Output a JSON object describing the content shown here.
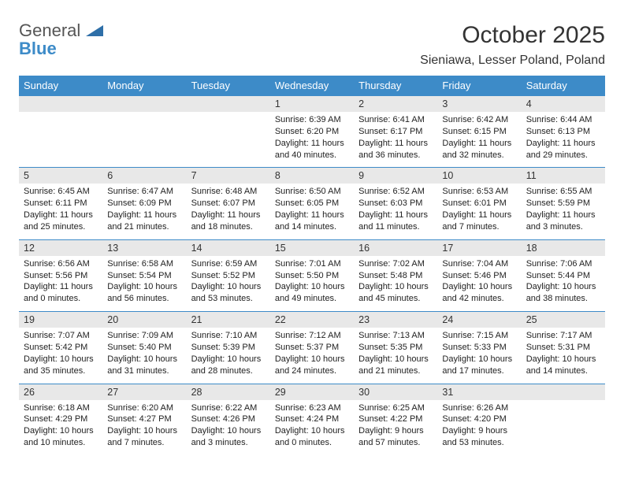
{
  "logo": {
    "text1": "General",
    "text2": "Blue",
    "triangle_color": "#2e6fa8"
  },
  "header": {
    "title": "October 2025",
    "location": "Sieniawa, Lesser Poland, Poland"
  },
  "colors": {
    "header_bg": "#3d8bc8",
    "daynum_bg": "#e8e8e8",
    "border": "#3d8bc8"
  },
  "day_names": [
    "Sunday",
    "Monday",
    "Tuesday",
    "Wednesday",
    "Thursday",
    "Friday",
    "Saturday"
  ],
  "weeks": [
    [
      null,
      null,
      null,
      {
        "n": "1",
        "sr": "Sunrise: 6:39 AM",
        "ss": "Sunset: 6:20 PM",
        "d1": "Daylight: 11 hours",
        "d2": "and 40 minutes."
      },
      {
        "n": "2",
        "sr": "Sunrise: 6:41 AM",
        "ss": "Sunset: 6:17 PM",
        "d1": "Daylight: 11 hours",
        "d2": "and 36 minutes."
      },
      {
        "n": "3",
        "sr": "Sunrise: 6:42 AM",
        "ss": "Sunset: 6:15 PM",
        "d1": "Daylight: 11 hours",
        "d2": "and 32 minutes."
      },
      {
        "n": "4",
        "sr": "Sunrise: 6:44 AM",
        "ss": "Sunset: 6:13 PM",
        "d1": "Daylight: 11 hours",
        "d2": "and 29 minutes."
      }
    ],
    [
      {
        "n": "5",
        "sr": "Sunrise: 6:45 AM",
        "ss": "Sunset: 6:11 PM",
        "d1": "Daylight: 11 hours",
        "d2": "and 25 minutes."
      },
      {
        "n": "6",
        "sr": "Sunrise: 6:47 AM",
        "ss": "Sunset: 6:09 PM",
        "d1": "Daylight: 11 hours",
        "d2": "and 21 minutes."
      },
      {
        "n": "7",
        "sr": "Sunrise: 6:48 AM",
        "ss": "Sunset: 6:07 PM",
        "d1": "Daylight: 11 hours",
        "d2": "and 18 minutes."
      },
      {
        "n": "8",
        "sr": "Sunrise: 6:50 AM",
        "ss": "Sunset: 6:05 PM",
        "d1": "Daylight: 11 hours",
        "d2": "and 14 minutes."
      },
      {
        "n": "9",
        "sr": "Sunrise: 6:52 AM",
        "ss": "Sunset: 6:03 PM",
        "d1": "Daylight: 11 hours",
        "d2": "and 11 minutes."
      },
      {
        "n": "10",
        "sr": "Sunrise: 6:53 AM",
        "ss": "Sunset: 6:01 PM",
        "d1": "Daylight: 11 hours",
        "d2": "and 7 minutes."
      },
      {
        "n": "11",
        "sr": "Sunrise: 6:55 AM",
        "ss": "Sunset: 5:59 PM",
        "d1": "Daylight: 11 hours",
        "d2": "and 3 minutes."
      }
    ],
    [
      {
        "n": "12",
        "sr": "Sunrise: 6:56 AM",
        "ss": "Sunset: 5:56 PM",
        "d1": "Daylight: 11 hours",
        "d2": "and 0 minutes."
      },
      {
        "n": "13",
        "sr": "Sunrise: 6:58 AM",
        "ss": "Sunset: 5:54 PM",
        "d1": "Daylight: 10 hours",
        "d2": "and 56 minutes."
      },
      {
        "n": "14",
        "sr": "Sunrise: 6:59 AM",
        "ss": "Sunset: 5:52 PM",
        "d1": "Daylight: 10 hours",
        "d2": "and 53 minutes."
      },
      {
        "n": "15",
        "sr": "Sunrise: 7:01 AM",
        "ss": "Sunset: 5:50 PM",
        "d1": "Daylight: 10 hours",
        "d2": "and 49 minutes."
      },
      {
        "n": "16",
        "sr": "Sunrise: 7:02 AM",
        "ss": "Sunset: 5:48 PM",
        "d1": "Daylight: 10 hours",
        "d2": "and 45 minutes."
      },
      {
        "n": "17",
        "sr": "Sunrise: 7:04 AM",
        "ss": "Sunset: 5:46 PM",
        "d1": "Daylight: 10 hours",
        "d2": "and 42 minutes."
      },
      {
        "n": "18",
        "sr": "Sunrise: 7:06 AM",
        "ss": "Sunset: 5:44 PM",
        "d1": "Daylight: 10 hours",
        "d2": "and 38 minutes."
      }
    ],
    [
      {
        "n": "19",
        "sr": "Sunrise: 7:07 AM",
        "ss": "Sunset: 5:42 PM",
        "d1": "Daylight: 10 hours",
        "d2": "and 35 minutes."
      },
      {
        "n": "20",
        "sr": "Sunrise: 7:09 AM",
        "ss": "Sunset: 5:40 PM",
        "d1": "Daylight: 10 hours",
        "d2": "and 31 minutes."
      },
      {
        "n": "21",
        "sr": "Sunrise: 7:10 AM",
        "ss": "Sunset: 5:39 PM",
        "d1": "Daylight: 10 hours",
        "d2": "and 28 minutes."
      },
      {
        "n": "22",
        "sr": "Sunrise: 7:12 AM",
        "ss": "Sunset: 5:37 PM",
        "d1": "Daylight: 10 hours",
        "d2": "and 24 minutes."
      },
      {
        "n": "23",
        "sr": "Sunrise: 7:13 AM",
        "ss": "Sunset: 5:35 PM",
        "d1": "Daylight: 10 hours",
        "d2": "and 21 minutes."
      },
      {
        "n": "24",
        "sr": "Sunrise: 7:15 AM",
        "ss": "Sunset: 5:33 PM",
        "d1": "Daylight: 10 hours",
        "d2": "and 17 minutes."
      },
      {
        "n": "25",
        "sr": "Sunrise: 7:17 AM",
        "ss": "Sunset: 5:31 PM",
        "d1": "Daylight: 10 hours",
        "d2": "and 14 minutes."
      }
    ],
    [
      {
        "n": "26",
        "sr": "Sunrise: 6:18 AM",
        "ss": "Sunset: 4:29 PM",
        "d1": "Daylight: 10 hours",
        "d2": "and 10 minutes."
      },
      {
        "n": "27",
        "sr": "Sunrise: 6:20 AM",
        "ss": "Sunset: 4:27 PM",
        "d1": "Daylight: 10 hours",
        "d2": "and 7 minutes."
      },
      {
        "n": "28",
        "sr": "Sunrise: 6:22 AM",
        "ss": "Sunset: 4:26 PM",
        "d1": "Daylight: 10 hours",
        "d2": "and 3 minutes."
      },
      {
        "n": "29",
        "sr": "Sunrise: 6:23 AM",
        "ss": "Sunset: 4:24 PM",
        "d1": "Daylight: 10 hours",
        "d2": "and 0 minutes."
      },
      {
        "n": "30",
        "sr": "Sunrise: 6:25 AM",
        "ss": "Sunset: 4:22 PM",
        "d1": "Daylight: 9 hours",
        "d2": "and 57 minutes."
      },
      {
        "n": "31",
        "sr": "Sunrise: 6:26 AM",
        "ss": "Sunset: 4:20 PM",
        "d1": "Daylight: 9 hours",
        "d2": "and 53 minutes."
      },
      null
    ]
  ]
}
